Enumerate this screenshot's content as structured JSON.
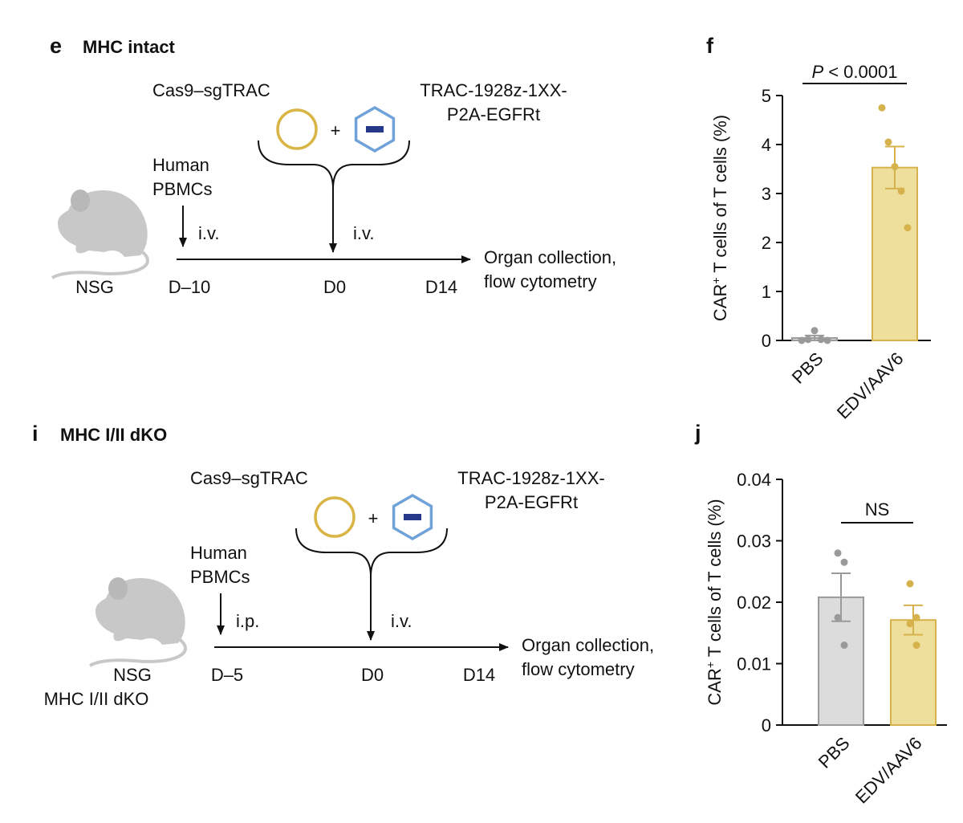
{
  "diagrams": [
    {
      "label": "e",
      "title": "MHC intact",
      "editor": "Cas9–sgTRAC",
      "template": [
        "TRAC-1928z-1XX-",
        "P2A-EGFRt"
      ],
      "plus": "+",
      "cells": [
        "Human",
        "PBMCs"
      ],
      "cell_route": "i.v.",
      "dose_route": "i.v.",
      "host": [
        "NSG"
      ],
      "days": [
        "D–10",
        "D0",
        "D14"
      ],
      "readout": [
        "Organ collection,",
        "flow cytometry"
      ]
    },
    {
      "label": "i",
      "title": "MHC I/II dKO",
      "editor": "Cas9–sgTRAC",
      "template": [
        "TRAC-1928z-1XX-",
        "P2A-EGFRt"
      ],
      "plus": "+",
      "cells": [
        "Human",
        "PBMCs"
      ],
      "cell_route": "i.p.",
      "dose_route": "i.v.",
      "host": [
        "NSG",
        "MHC I/II dKO"
      ],
      "days": [
        "D–5",
        "D0",
        "D14"
      ],
      "readout": [
        "Organ collection,",
        "flow cytometry"
      ]
    }
  ],
  "chart_data": [
    {
      "type": "bar",
      "panel_label": "f",
      "ylabel_parts": [
        "CAR",
        "+",
        " T cells of T cells (%)"
      ],
      "categories": [
        "PBS",
        "EDV/AAV6"
      ],
      "values": [
        0.05,
        3.53
      ],
      "errors": [
        0.05,
        0.43
      ],
      "points": [
        [
          0.0,
          0.02,
          0.2,
          0.02,
          0.0
        ],
        [
          4.75,
          4.05,
          3.55,
          3.05,
          2.3
        ]
      ],
      "colors": [
        "#dcdcdc",
        "#efdf9c"
      ],
      "edge_colors": [
        "#9a9a9a",
        "#d6b24c"
      ],
      "point_colors": [
        "#9a9a9a",
        "#d6b24c"
      ],
      "ylim": [
        0,
        5
      ],
      "yticks": [
        0,
        1,
        2,
        3,
        4,
        5
      ],
      "annotation_italic": "P",
      "annotation": "< 0.0001"
    },
    {
      "type": "bar",
      "panel_label": "j",
      "ylabel_parts": [
        "CAR",
        "+",
        " T cells of T cells (%)"
      ],
      "categories": [
        "PBS",
        "EDV/AAV6"
      ],
      "values": [
        0.0208,
        0.0171
      ],
      "errors": [
        0.0039,
        0.0024
      ],
      "points": [
        [
          0.028,
          0.0265,
          0.0175,
          0.013
        ],
        [
          0.023,
          0.0175,
          0.0165,
          0.013
        ]
      ],
      "colors": [
        "#dcdcdc",
        "#efdf9c"
      ],
      "edge_colors": [
        "#9a9a9a",
        "#d6b24c"
      ],
      "point_colors": [
        "#9a9a9a",
        "#d6b24c"
      ],
      "ylim": [
        0,
        0.04
      ],
      "yticks": [
        0,
        0.01,
        0.02,
        0.03,
        0.04
      ],
      "annotation": "NS"
    }
  ]
}
